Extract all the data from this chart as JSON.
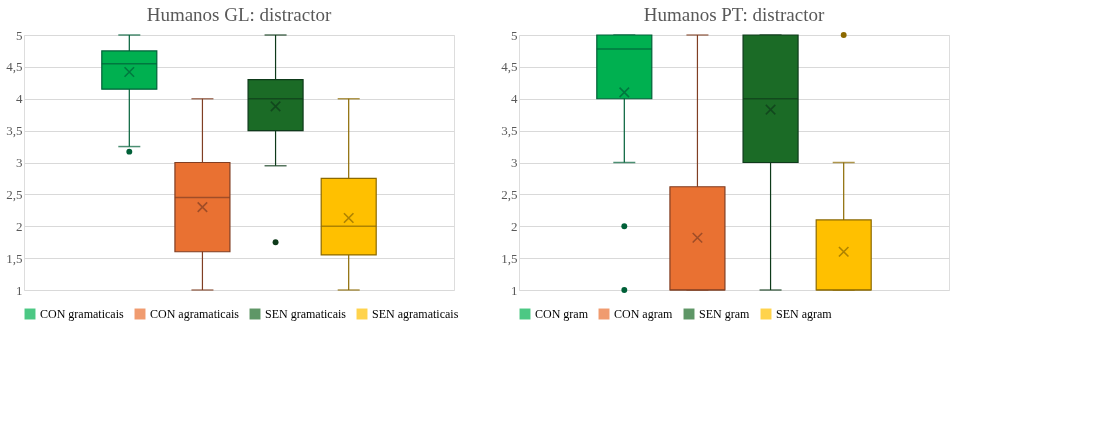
{
  "chart_data": [
    {
      "type": "box",
      "title": "Humanos GL: distractor",
      "categories": [
        null
      ],
      "tick_labels": "y",
      "grid": "y",
      "legend": "bottom",
      "marker": "cross",
      "ylim": [
        1,
        5
      ],
      "yticks": [
        1,
        {
          "value": 1.5,
          "label": "1,5"
        },
        2,
        {
          "value": 2.5,
          "label": "2,5"
        },
        3,
        {
          "value": 3.5,
          "label": "3,5"
        },
        4,
        {
          "value": 4.5,
          "label": "4,5"
        },
        5
      ],
      "series": [
        {
          "name": "CON gramaticais",
          "color": "#00b050",
          "boxes": [
            {
              "low": 3.25,
              "q1": 4.15,
              "median": 4.55,
              "q3": 4.75,
              "high": 5,
              "mean": 4.42,
              "outliers": [
                3.17
              ]
            }
          ]
        },
        {
          "name": "CON agramaticais",
          "color": "#e97132",
          "boxes": [
            {
              "low": 1,
              "q1": 1.6,
              "median": 2.45,
              "q3": 3,
              "high": 4,
              "mean": 2.3
            }
          ]
        },
        {
          "name": "SEN gramaticais",
          "color": "#1b6b26",
          "boxes": [
            {
              "low": 2.95,
              "q1": 3.5,
              "median": 4,
              "q3": 4.3,
              "high": 5,
              "mean": 3.88,
              "outliers": [
                1.75
              ]
            }
          ]
        },
        {
          "name": "SEN agramaticais",
          "color": "#ffc000",
          "boxes": [
            {
              "low": 1,
              "q1": 1.55,
              "median": 2,
              "q3": 2.75,
              "high": 4,
              "mean": 2.13
            }
          ]
        }
      ]
    },
    {
      "type": "box",
      "title": "Humanos PT: distractor",
      "categories": [
        null
      ],
      "tick_labels": "y",
      "grid": "y",
      "legend": "bottom",
      "marker": "cross",
      "ylim": [
        1,
        5
      ],
      "yticks": [
        1,
        {
          "value": 1.5,
          "label": "1,5"
        },
        2,
        {
          "value": 2.5,
          "label": "2,5"
        },
        3,
        {
          "value": 3.5,
          "label": "3,5"
        },
        4,
        {
          "value": 4.5,
          "label": "4,5"
        },
        5
      ],
      "series": [
        {
          "name": "CON gram",
          "color": "#00b050",
          "boxes": [
            {
              "low": 3,
              "q1": 4,
              "median": 4.78,
              "q3": 5,
              "high": 5,
              "mean": 4.1,
              "outliers": [
                2,
                1
              ]
            }
          ]
        },
        {
          "name": "CON agram",
          "color": "#e97132",
          "boxes": [
            {
              "low": 1,
              "q1": 1,
              "median": 1,
              "q3": 2.62,
              "high": 5,
              "mean": 1.82
            }
          ]
        },
        {
          "name": "SEN gram",
          "color": "#1b6b26",
          "boxes": [
            {
              "low": 1,
              "q1": 3,
              "median": 4,
              "q3": 5,
              "high": 5,
              "mean": 3.83
            }
          ]
        },
        {
          "name": "SEN agram",
          "color": "#ffc000",
          "boxes": [
            {
              "low": 1,
              "q1": 1,
              "median": 1,
              "q3": 2.1,
              "high": 3,
              "mean": 1.6,
              "outliers": [
                5
              ]
            }
          ]
        }
      ]
    }
  ]
}
